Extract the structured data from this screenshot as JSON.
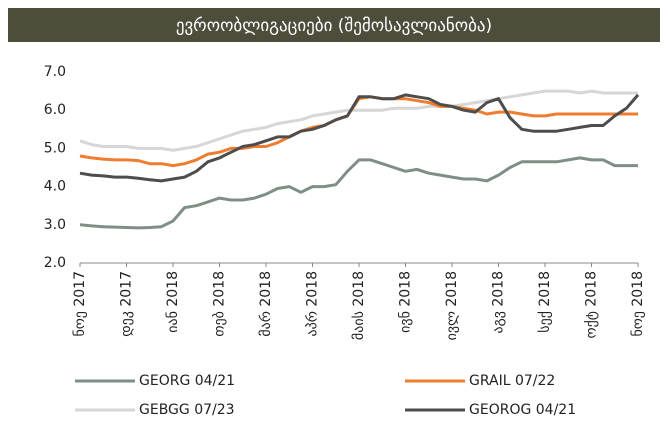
{
  "chart_data": {
    "type": "line",
    "title": "ევროობლიგაციები (შემოსავლიანობა)",
    "categories": [
      "ნოე 2017",
      null,
      null,
      null,
      "დეკ 2017",
      null,
      null,
      null,
      "იან 2018",
      null,
      null,
      null,
      "თებ 2018",
      null,
      null,
      null,
      "მარ 2018",
      null,
      null,
      null,
      "აპრ 2018",
      null,
      null,
      null,
      "მაის 2018",
      null,
      null,
      null,
      "ივნ 2018",
      null,
      null,
      null,
      "ივლ 2018",
      null,
      null,
      null,
      "აგვ 2018",
      null,
      null,
      null,
      "სექ 2018",
      null,
      null,
      null,
      "ოქტ 2018",
      null,
      null,
      null,
      "ნოე 2018"
    ],
    "series": [
      {
        "name": "GEORG 04/21",
        "color": "#7f8f85",
        "values": [
          3.0,
          2.97,
          2.95,
          2.94,
          2.93,
          2.92,
          2.93,
          2.95,
          3.1,
          3.45,
          3.5,
          3.6,
          3.7,
          3.65,
          3.65,
          3.7,
          3.8,
          3.95,
          4.0,
          3.85,
          4.0,
          4.0,
          4.05,
          4.4,
          4.7,
          4.7,
          4.6,
          4.5,
          4.4,
          4.45,
          4.35,
          4.3,
          4.25,
          4.2,
          4.2,
          4.15,
          4.3,
          4.5,
          4.65,
          4.65,
          4.65,
          4.65,
          4.7,
          4.75,
          4.7,
          4.7,
          4.55,
          4.55,
          4.55
        ]
      },
      {
        "name": "GRAIL 07/22",
        "color": "#f07d2f",
        "values": [
          4.8,
          4.75,
          4.72,
          4.7,
          4.7,
          4.68,
          4.6,
          4.6,
          4.55,
          4.6,
          4.7,
          4.85,
          4.9,
          5.0,
          5.0,
          5.05,
          5.05,
          5.15,
          5.3,
          5.45,
          5.55,
          5.6,
          5.75,
          5.85,
          6.3,
          6.35,
          6.3,
          6.3,
          6.3,
          6.25,
          6.2,
          6.1,
          6.1,
          6.05,
          6.0,
          5.9,
          5.95,
          5.95,
          5.9,
          5.85,
          5.85,
          5.9,
          5.9,
          5.9,
          5.9,
          5.9,
          5.9,
          5.9,
          5.9
        ]
      },
      {
        "name": "GEBGG 07/23",
        "color": "#d6d6d6",
        "values": [
          5.2,
          5.1,
          5.05,
          5.05,
          5.05,
          5.0,
          5.0,
          5.0,
          4.95,
          5.0,
          5.05,
          5.15,
          5.25,
          5.35,
          5.45,
          5.5,
          5.55,
          5.65,
          5.7,
          5.75,
          5.85,
          5.9,
          5.95,
          6.0,
          6.0,
          6.0,
          6.0,
          6.05,
          6.05,
          6.05,
          6.1,
          6.1,
          6.1,
          6.15,
          6.2,
          6.25,
          6.3,
          6.35,
          6.4,
          6.45,
          6.5,
          6.5,
          6.5,
          6.45,
          6.5,
          6.45,
          6.45,
          6.45,
          6.45
        ]
      },
      {
        "name": "GEOROG 04/21",
        "color": "#4d4d4d",
        "values": [
          4.35,
          4.3,
          4.28,
          4.25,
          4.25,
          4.22,
          4.18,
          4.15,
          4.2,
          4.25,
          4.4,
          4.65,
          4.75,
          4.9,
          5.05,
          5.1,
          5.2,
          5.3,
          5.3,
          5.45,
          5.5,
          5.6,
          5.75,
          5.85,
          6.35,
          6.35,
          6.3,
          6.3,
          6.4,
          6.35,
          6.3,
          6.15,
          6.1,
          6.0,
          5.95,
          6.2,
          6.3,
          5.8,
          5.5,
          5.45,
          5.45,
          5.45,
          5.5,
          5.55,
          5.6,
          5.6,
          5.85,
          6.05,
          6.4
        ]
      }
    ],
    "ylim": [
      2,
      7
    ],
    "yticks": [
      {
        "value": 2,
        "label": "2.0"
      },
      {
        "value": 3,
        "label": "3.0"
      },
      {
        "value": 4,
        "label": "4.0"
      },
      {
        "value": 5,
        "label": "5.0"
      },
      {
        "value": 6,
        "label": "6.0"
      },
      {
        "value": 7,
        "label": "7.0"
      }
    ],
    "grid": false
  }
}
